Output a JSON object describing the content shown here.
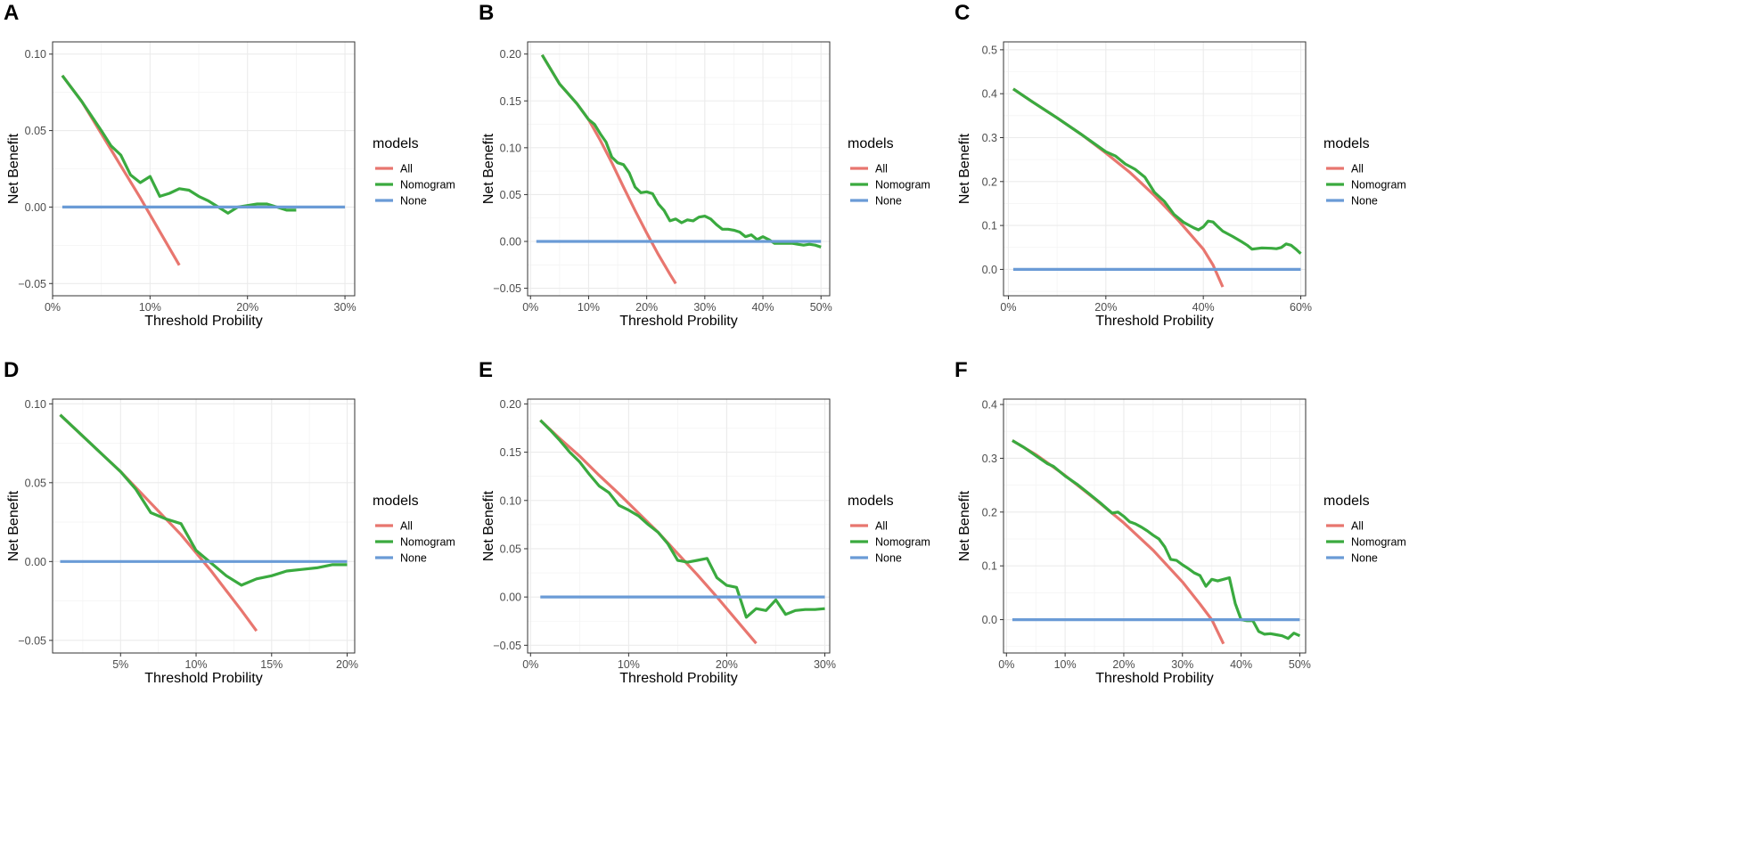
{
  "colors": {
    "All": "#E8766F",
    "Nomogram": "#3AAA3F",
    "None": "#6A9BD6"
  },
  "legend": {
    "title": "models",
    "items": [
      "All",
      "Nomogram",
      "None"
    ]
  },
  "chart_data": [
    {
      "letter": "A",
      "type": "line",
      "xlabel": "Threshold Probility",
      "ylabel": "Net Benefit",
      "xlim": [
        0,
        0.31
      ],
      "ylim": [
        -0.058,
        0.108
      ],
      "xticks": [
        0,
        0.1,
        0.2,
        0.3
      ],
      "xtick_labels": [
        "0%",
        "10%",
        "20%",
        "30%"
      ],
      "yticks": [
        -0.05,
        0,
        0.05,
        0.1
      ],
      "ytick_labels": [
        "−0.05",
        "0.00",
        "0.05",
        "0.10"
      ],
      "series": [
        {
          "name": "All",
          "x": [
            0.01,
            0.03,
            0.05,
            0.07,
            0.09,
            0.11,
            0.13
          ],
          "y": [
            0.086,
            0.069,
            0.048,
            0.027,
            0.006,
            -0.016,
            -0.038
          ]
        },
        {
          "name": "Nomogram",
          "x": [
            0.01,
            0.03,
            0.05,
            0.06,
            0.07,
            0.08,
            0.09,
            0.1,
            0.11,
            0.12,
            0.13,
            0.14,
            0.15,
            0.16,
            0.17,
            0.18,
            0.19,
            0.2,
            0.21,
            0.22,
            0.23,
            0.24,
            0.25
          ],
          "y": [
            0.086,
            0.069,
            0.05,
            0.04,
            0.034,
            0.021,
            0.016,
            0.02,
            0.007,
            0.009,
            0.012,
            0.011,
            0.007,
            0.004,
            0.0,
            -0.004,
            0.0,
            0.001,
            0.002,
            0.002,
            0.0,
            -0.002,
            -0.002
          ]
        },
        {
          "name": "None",
          "x": [
            0.01,
            0.3
          ],
          "y": [
            0,
            0
          ]
        }
      ]
    },
    {
      "letter": "B",
      "type": "line",
      "xlabel": "Threshold Probility",
      "ylabel": "Net Benefit",
      "xlim": [
        -0.005,
        0.515
      ],
      "ylim": [
        -0.058,
        0.213
      ],
      "xticks": [
        0,
        0.1,
        0.2,
        0.3,
        0.4,
        0.5
      ],
      "xtick_labels": [
        "0%",
        "10%",
        "20%",
        "30%",
        "40%",
        "50%"
      ],
      "yticks": [
        -0.05,
        0,
        0.05,
        0.1,
        0.15,
        0.2
      ],
      "ytick_labels": [
        "−0.05",
        "0.00",
        "0.05",
        "0.10",
        "0.15",
        "0.20"
      ],
      "series": [
        {
          "name": "All",
          "x": [
            0.02,
            0.05,
            0.08,
            0.1,
            0.12,
            0.14,
            0.16,
            0.18,
            0.2,
            0.22,
            0.24,
            0.25
          ],
          "y": [
            0.199,
            0.168,
            0.147,
            0.13,
            0.108,
            0.084,
            0.058,
            0.033,
            0.009,
            -0.014,
            -0.035,
            -0.045
          ]
        },
        {
          "name": "Nomogram",
          "x": [
            0.02,
            0.05,
            0.08,
            0.1,
            0.11,
            0.12,
            0.13,
            0.14,
            0.15,
            0.16,
            0.17,
            0.18,
            0.19,
            0.2,
            0.21,
            0.22,
            0.23,
            0.24,
            0.25,
            0.26,
            0.27,
            0.28,
            0.29,
            0.3,
            0.31,
            0.32,
            0.33,
            0.34,
            0.35,
            0.36,
            0.37,
            0.38,
            0.39,
            0.4,
            0.41,
            0.42,
            0.43,
            0.44,
            0.45,
            0.46,
            0.47,
            0.48,
            0.49,
            0.5
          ],
          "y": [
            0.199,
            0.168,
            0.147,
            0.13,
            0.125,
            0.115,
            0.106,
            0.09,
            0.084,
            0.082,
            0.073,
            0.058,
            0.052,
            0.053,
            0.051,
            0.04,
            0.033,
            0.022,
            0.024,
            0.02,
            0.023,
            0.022,
            0.026,
            0.027,
            0.024,
            0.018,
            0.013,
            0.013,
            0.012,
            0.01,
            0.005,
            0.007,
            0.002,
            0.005,
            0.002,
            -0.002,
            -0.002,
            -0.002,
            -0.002,
            -0.003,
            -0.004,
            -0.003,
            -0.004,
            -0.006
          ]
        },
        {
          "name": "None",
          "x": [
            0.01,
            0.5
          ],
          "y": [
            0,
            0
          ]
        }
      ]
    },
    {
      "letter": "C",
      "type": "line",
      "xlabel": "Threshold Probility",
      "ylabel": "Net Benefit",
      "xlim": [
        -0.01,
        0.61
      ],
      "ylim": [
        -0.06,
        0.518
      ],
      "xticks": [
        0,
        0.2,
        0.4,
        0.6
      ],
      "xtick_labels": [
        "0%",
        "20%",
        "40%",
        "60%"
      ],
      "yticks": [
        0,
        0.1,
        0.2,
        0.3,
        0.4,
        0.5
      ],
      "ytick_labels": [
        "0.0",
        "0.1",
        "0.2",
        "0.3",
        "0.4",
        "0.5"
      ],
      "series": [
        {
          "name": "All",
          "x": [
            0.01,
            0.05,
            0.1,
            0.15,
            0.2,
            0.25,
            0.3,
            0.35,
            0.4,
            0.42,
            0.44
          ],
          "y": [
            0.411,
            0.381,
            0.345,
            0.307,
            0.265,
            0.22,
            0.168,
            0.11,
            0.046,
            0.01,
            -0.04
          ]
        },
        {
          "name": "Nomogram",
          "x": [
            0.01,
            0.05,
            0.1,
            0.15,
            0.2,
            0.22,
            0.24,
            0.26,
            0.28,
            0.3,
            0.32,
            0.34,
            0.36,
            0.38,
            0.39,
            0.4,
            0.41,
            0.42,
            0.43,
            0.44,
            0.46,
            0.48,
            0.49,
            0.5,
            0.52,
            0.54,
            0.55,
            0.56,
            0.57,
            0.58,
            0.59,
            0.6
          ],
          "y": [
            0.411,
            0.381,
            0.345,
            0.307,
            0.268,
            0.258,
            0.24,
            0.228,
            0.21,
            0.175,
            0.155,
            0.125,
            0.107,
            0.095,
            0.09,
            0.097,
            0.11,
            0.108,
            0.097,
            0.087,
            0.075,
            0.062,
            0.055,
            0.046,
            0.049,
            0.048,
            0.047,
            0.05,
            0.058,
            0.055,
            0.046,
            0.036
          ]
        },
        {
          "name": "None",
          "x": [
            0.01,
            0.6
          ],
          "y": [
            0,
            0
          ]
        }
      ]
    },
    {
      "letter": "D",
      "type": "line",
      "xlabel": "Threshold Probility",
      "ylabel": "Net Benefit",
      "xlim": [
        0.005,
        0.205
      ],
      "ylim": [
        -0.058,
        0.103
      ],
      "xticks": [
        0.05,
        0.1,
        0.15,
        0.2
      ],
      "xtick_labels": [
        "5%",
        "10%",
        "15%",
        "20%"
      ],
      "yticks": [
        -0.05,
        0,
        0.05,
        0.1
      ],
      "ytick_labels": [
        "−0.05",
        "0.00",
        "0.05",
        "0.10"
      ],
      "series": [
        {
          "name": "All",
          "x": [
            0.01,
            0.03,
            0.05,
            0.07,
            0.09,
            0.11,
            0.13,
            0.14
          ],
          "y": [
            0.093,
            0.075,
            0.057,
            0.037,
            0.017,
            -0.006,
            -0.031,
            -0.044
          ]
        },
        {
          "name": "Nomogram",
          "x": [
            0.01,
            0.02,
            0.03,
            0.04,
            0.05,
            0.06,
            0.07,
            0.08,
            0.09,
            0.1,
            0.11,
            0.12,
            0.13,
            0.14,
            0.15,
            0.16,
            0.17,
            0.18,
            0.19,
            0.2
          ],
          "y": [
            0.093,
            0.084,
            0.075,
            0.066,
            0.057,
            0.046,
            0.031,
            0.027,
            0.024,
            0.007,
            -0.001,
            -0.009,
            -0.015,
            -0.011,
            -0.009,
            -0.006,
            -0.005,
            -0.004,
            -0.002,
            -0.002
          ]
        },
        {
          "name": "None",
          "x": [
            0.01,
            0.2
          ],
          "y": [
            0,
            0
          ]
        }
      ]
    },
    {
      "letter": "E",
      "type": "line",
      "xlabel": "Threshold Probility",
      "ylabel": "Net Benefit",
      "xlim": [
        -0.003,
        0.305
      ],
      "ylim": [
        -0.058,
        0.205
      ],
      "xticks": [
        0,
        0.1,
        0.2,
        0.3
      ],
      "xtick_labels": [
        "0%",
        "10%",
        "20%",
        "30%"
      ],
      "yticks": [
        -0.05,
        0,
        0.05,
        0.1,
        0.15,
        0.2
      ],
      "ytick_labels": [
        "−0.05",
        "0.00",
        "0.05",
        "0.10",
        "0.15",
        "0.20"
      ],
      "series": [
        {
          "name": "All",
          "x": [
            0.01,
            0.03,
            0.05,
            0.07,
            0.09,
            0.11,
            0.13,
            0.15,
            0.17,
            0.19,
            0.21,
            0.23
          ],
          "y": [
            0.183,
            0.164,
            0.146,
            0.126,
            0.107,
            0.087,
            0.067,
            0.045,
            0.023,
            0.0,
            -0.024,
            -0.048
          ]
        },
        {
          "name": "Nomogram",
          "x": [
            0.01,
            0.02,
            0.03,
            0.04,
            0.05,
            0.06,
            0.07,
            0.08,
            0.09,
            0.1,
            0.11,
            0.12,
            0.13,
            0.14,
            0.15,
            0.16,
            0.17,
            0.18,
            0.19,
            0.2,
            0.21,
            0.22,
            0.23,
            0.24,
            0.25,
            0.26,
            0.27,
            0.28,
            0.29,
            0.3
          ],
          "y": [
            0.183,
            0.173,
            0.162,
            0.15,
            0.14,
            0.127,
            0.115,
            0.108,
            0.095,
            0.09,
            0.084,
            0.075,
            0.067,
            0.055,
            0.038,
            0.036,
            0.038,
            0.04,
            0.02,
            0.012,
            0.01,
            -0.021,
            -0.012,
            -0.014,
            -0.003,
            -0.018,
            -0.014,
            -0.013,
            -0.013,
            -0.012
          ]
        },
        {
          "name": "None",
          "x": [
            0.01,
            0.3
          ],
          "y": [
            0,
            0
          ]
        }
      ]
    },
    {
      "letter": "F",
      "type": "line",
      "xlabel": "Threshold Probility",
      "ylabel": "Net Benefit",
      "xlim": [
        -0.005,
        0.51
      ],
      "ylim": [
        -0.062,
        0.41
      ],
      "xticks": [
        0,
        0.1,
        0.2,
        0.3,
        0.4,
        0.5
      ],
      "xtick_labels": [
        "0%",
        "10%",
        "20%",
        "30%",
        "40%",
        "50%"
      ],
      "yticks": [
        0,
        0.1,
        0.2,
        0.3,
        0.4
      ],
      "ytick_labels": [
        "0.0",
        "0.1",
        "0.2",
        "0.3",
        "0.4"
      ],
      "series": [
        {
          "name": "All",
          "x": [
            0.01,
            0.05,
            0.1,
            0.15,
            0.2,
            0.25,
            0.3,
            0.33,
            0.35,
            0.37
          ],
          "y": [
            0.333,
            0.307,
            0.268,
            0.225,
            0.18,
            0.129,
            0.07,
            0.029,
            0.0,
            -0.045
          ]
        },
        {
          "name": "Nomogram",
          "x": [
            0.01,
            0.03,
            0.05,
            0.07,
            0.08,
            0.1,
            0.12,
            0.14,
            0.16,
            0.18,
            0.19,
            0.2,
            0.21,
            0.22,
            0.23,
            0.24,
            0.25,
            0.26,
            0.27,
            0.28,
            0.29,
            0.3,
            0.31,
            0.32,
            0.33,
            0.34,
            0.35,
            0.36,
            0.37,
            0.38,
            0.39,
            0.4,
            0.41,
            0.42,
            0.43,
            0.44,
            0.45,
            0.46,
            0.47,
            0.48,
            0.49,
            0.5
          ],
          "y": [
            0.333,
            0.32,
            0.305,
            0.29,
            0.285,
            0.267,
            0.252,
            0.235,
            0.217,
            0.198,
            0.2,
            0.192,
            0.182,
            0.178,
            0.172,
            0.165,
            0.157,
            0.15,
            0.135,
            0.112,
            0.11,
            0.102,
            0.095,
            0.087,
            0.082,
            0.062,
            0.075,
            0.072,
            0.075,
            0.078,
            0.03,
            0.0,
            -0.002,
            -0.002,
            -0.022,
            -0.027,
            -0.026,
            -0.028,
            -0.03,
            -0.035,
            -0.025,
            -0.03
          ]
        },
        {
          "name": "None",
          "x": [
            0.01,
            0.5
          ],
          "y": [
            0,
            0
          ]
        }
      ]
    }
  ]
}
